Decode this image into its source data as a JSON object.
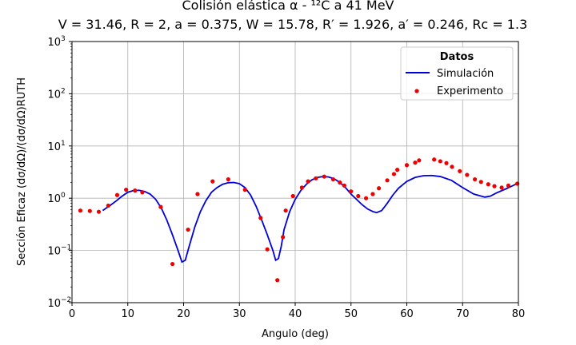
{
  "chart_data": {
    "type": "line",
    "title": "Colisión elástica α - ¹²C a 41 MeV",
    "subtitle": "V = 31.46, R = 2, a = 0.375, W = 15.78, R′ = 1.926, a′ = 0.246, Rc = 1.3",
    "xlabel": "Angulo (deg)",
    "ylabel": "Sección Eficaz (dσ/dΩ)/(dσ/dΩ)RUTH",
    "xlim": [
      0,
      80
    ],
    "ylim": [
      0.01,
      1000
    ],
    "yscale": "log",
    "grid": true,
    "x_ticks": [
      0,
      10,
      20,
      30,
      40,
      50,
      60,
      70,
      80
    ],
    "x_tick_labels": [
      "0",
      "10",
      "20",
      "30",
      "40",
      "50",
      "60",
      "70",
      "80"
    ],
    "y_ticks": [
      0.01,
      0.1,
      1,
      10,
      100,
      1000
    ],
    "y_tick_labels": [
      {
        "base": "10",
        "exp": "−2"
      },
      {
        "base": "10",
        "exp": "−1"
      },
      {
        "base": "10",
        "exp": "0"
      },
      {
        "base": "10",
        "exp": "1"
      },
      {
        "base": "10",
        "exp": "2"
      },
      {
        "base": "10",
        "exp": "3"
      }
    ],
    "legend": {
      "title": "Datos",
      "position": "top-right",
      "entries": [
        "Simulación",
        "Experimento"
      ]
    },
    "series": [
      {
        "name": "Simulación",
        "kind": "line",
        "color": "#0000dd",
        "x": [
          5.5,
          7,
          8,
          9,
          10,
          11,
          12,
          13,
          14,
          15,
          16,
          17,
          18,
          19,
          19.7,
          20.3,
          21,
          22,
          23,
          24,
          25,
          26,
          27,
          28,
          29,
          30,
          31,
          32,
          33,
          34,
          35,
          36,
          36.5,
          37,
          37.5,
          38,
          39,
          40,
          41,
          42,
          43,
          44,
          45,
          46,
          47,
          48,
          49,
          50,
          51,
          52,
          53,
          54,
          54.6,
          55.5,
          56.5,
          57.5,
          58.5,
          60,
          61.5,
          63,
          64.5,
          66,
          68,
          70,
          72,
          74,
          75,
          76,
          78,
          80
        ],
        "y": [
          0.58,
          0.75,
          0.9,
          1.1,
          1.3,
          1.4,
          1.42,
          1.35,
          1.2,
          0.95,
          0.65,
          0.38,
          0.2,
          0.1,
          0.06,
          0.065,
          0.12,
          0.28,
          0.55,
          0.9,
          1.3,
          1.6,
          1.85,
          1.98,
          2.0,
          1.9,
          1.6,
          1.15,
          0.7,
          0.38,
          0.2,
          0.1,
          0.065,
          0.07,
          0.12,
          0.25,
          0.55,
          0.95,
          1.4,
          1.85,
          2.25,
          2.5,
          2.6,
          2.55,
          2.35,
          2.0,
          1.6,
          1.2,
          0.95,
          0.75,
          0.62,
          0.55,
          0.53,
          0.58,
          0.8,
          1.15,
          1.55,
          2.1,
          2.5,
          2.7,
          2.72,
          2.6,
          2.2,
          1.6,
          1.2,
          1.05,
          1.1,
          1.25,
          1.55,
          1.95
        ]
      },
      {
        "name": "Experimento",
        "kind": "scatter",
        "color": "#ee0000",
        "x": [
          1.5,
          3.2,
          4.8,
          6.5,
          8.1,
          9.7,
          11.3,
          12.6,
          15.9,
          18.0,
          20.8,
          22.5,
          25.2,
          28.0,
          31.0,
          33.8,
          35.0,
          36.8,
          37.8,
          38.3,
          39.6,
          41.2,
          42.3,
          43.7,
          45.2,
          46.8,
          48.0,
          48.8,
          50.0,
          51.3,
          52.7,
          53.9,
          55.0,
          56.5,
          57.7,
          58.3,
          60.0,
          61.5,
          62.2,
          64.9,
          66.0,
          67.1,
          68.1,
          69.5,
          70.8,
          72.2,
          73.3,
          74.6,
          75.7,
          77.0,
          78.2,
          79.8
        ],
        "y": [
          0.58,
          0.57,
          0.55,
          0.72,
          1.15,
          1.45,
          1.4,
          1.3,
          0.68,
          0.055,
          0.25,
          1.2,
          2.1,
          2.3,
          1.45,
          0.42,
          0.105,
          0.027,
          0.18,
          0.58,
          1.1,
          1.6,
          2.1,
          2.4,
          2.6,
          2.3,
          2.0,
          1.75,
          1.35,
          1.1,
          1.0,
          1.2,
          1.55,
          2.2,
          2.9,
          3.5,
          4.3,
          4.8,
          5.3,
          5.5,
          5.1,
          4.7,
          4.0,
          3.3,
          2.8,
          2.3,
          2.05,
          1.85,
          1.7,
          1.6,
          1.75,
          1.9
        ]
      }
    ]
  }
}
